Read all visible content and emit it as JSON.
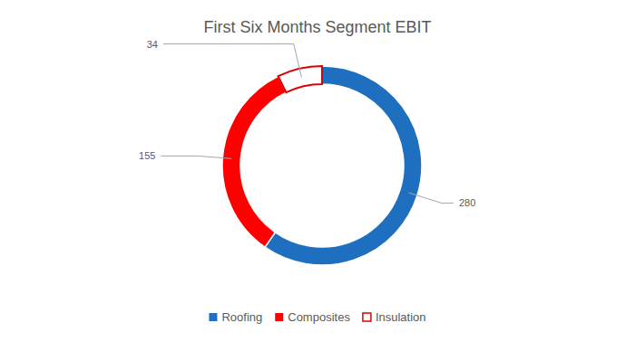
{
  "chart_data": {
    "type": "donut",
    "title": "First Six Months Segment EBIT",
    "categories": [
      "Roofing",
      "Composites",
      "Insulation"
    ],
    "values": [
      280,
      155,
      34
    ],
    "colors": [
      "#1f6fc0",
      "#ff0000",
      "#ffffff"
    ],
    "data_labels": true,
    "legend": "bottom"
  }
}
